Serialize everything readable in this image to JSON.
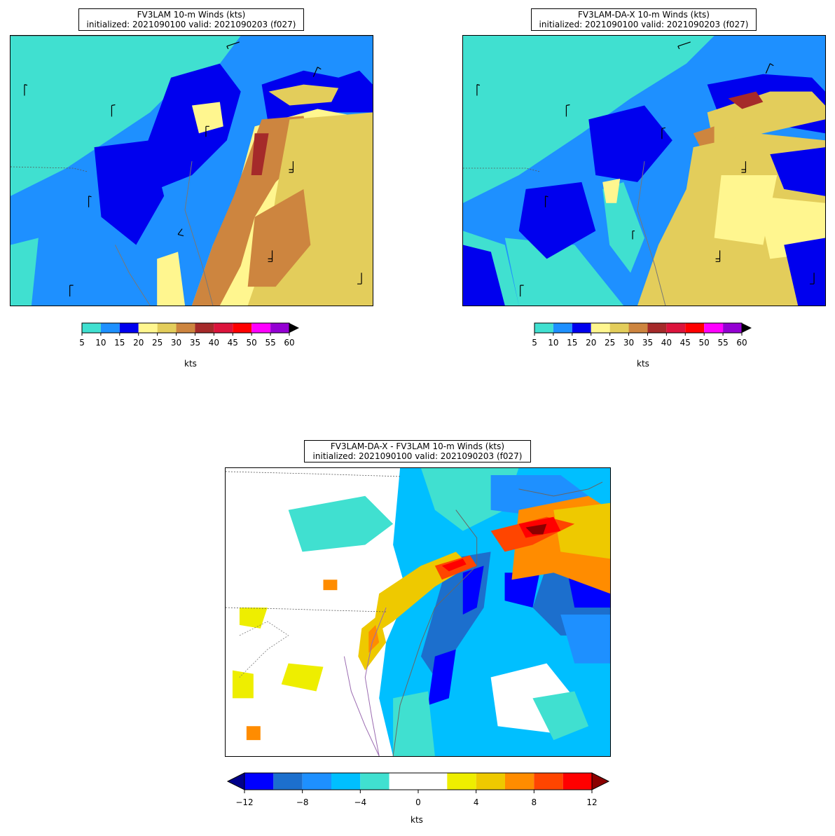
{
  "panels": {
    "top_left": {
      "title_line1": "FV3LAM 10-m Winds (kts)",
      "title_line2": "initialized: 2021090100 valid: 2021090203 (f027)"
    },
    "top_right": {
      "title_line1": "FV3LAM-DA-X 10-m Winds (kts)",
      "title_line2": "initialized: 2021090100 valid: 2021090203 (f027)"
    },
    "bottom": {
      "title_line1": "FV3LAM-DA-X - FV3LAM 10-m Winds (kts)",
      "title_line2": "initialized: 2021090100 valid: 2021090203 (f027)"
    }
  },
  "colorbars": {
    "wind": {
      "ticks": [
        "5",
        "10",
        "15",
        "20",
        "25",
        "30",
        "35",
        "40",
        "45",
        "50",
        "55",
        "60"
      ],
      "unit": "kts",
      "colors": [
        "#40e0d0",
        "#1e90ff",
        "#0000ee",
        "#fff68f",
        "#e3cd5b",
        "#cd853f",
        "#a52a2a",
        "#dc143c",
        "#ff0000",
        "#ff00ff",
        "#9400d3"
      ],
      "extend_color": "#000000"
    },
    "diff": {
      "ticks": [
        "−12",
        "−8",
        "−4",
        "0",
        "4",
        "8",
        "12"
      ],
      "unit": "kts",
      "colors": [
        "#0000ff",
        "#1c6fcd",
        "#1e90ff",
        "#00bfff",
        "#40e0d0",
        "#ffffff",
        "#ffffff",
        "#eeee00",
        "#eec900",
        "#ff8c00",
        "#ff4500",
        "#ff0000"
      ],
      "under_color": "#00008b",
      "over_color": "#8b0000"
    }
  }
}
